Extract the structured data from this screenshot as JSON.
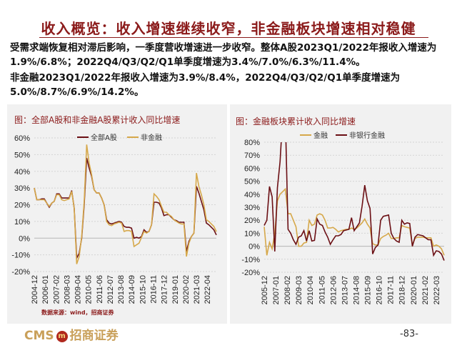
{
  "header": {
    "title": "收入概览：收入增速继续收窄，非金融板块增速相对稳健",
    "paragraph1": "受需求端恢复相对滞后影响，一季度营收增速进一步收窄。整体A股2023Q1/2022年报收入增速为1.9%/6.8%；2022Q4/Q3/Q2/Q1单季度增速为3.4%/7.0%/6.3%/11.4%。",
    "paragraph2": "非金融2023Q1/2022年报收入增速为3.9%/8.4%，2022Q4/Q3/Q2/Q1单季度增速为5.0%/8.7%/6.9%/14.2%。"
  },
  "footer": {
    "logo_text": "CMS",
    "logo_cn": "招商证券",
    "page_number": "-83-"
  },
  "colors": {
    "title": "#8b1a1a",
    "dark_series": "#6b0f14",
    "gold_series": "#d6a84a",
    "panel_bg": "#f1f1f1"
  },
  "chart_data": [
    {
      "type": "line",
      "title": "图：全部A股和非金融A股累计收入同比增速",
      "source": "数据来源：wind，招商证券",
      "ylim": [
        -20,
        60
      ],
      "yticks": [
        "60%",
        "50%",
        "40%",
        "30%",
        "20%",
        "10%",
        "0%",
        "-10%",
        "-20%"
      ],
      "ytick_values": [
        60,
        50,
        40,
        30,
        20,
        10,
        0,
        -10,
        -20
      ],
      "xtick_labels": [
        "2004-12",
        "2006-01",
        "2007-02",
        "2008-03",
        "2009-04",
        "2010-05",
        "2011-06",
        "2012-07",
        "2013-08",
        "2014-09",
        "2015-10",
        "2016-11",
        "2017-12",
        "2019-01",
        "2020-02",
        "2021-03",
        "2022-04"
      ],
      "grid": "horizontal dotted",
      "legend": "top",
      "x": [
        "2004-12",
        "2005-03",
        "2005-06",
        "2005-09",
        "2005-12",
        "2006-03",
        "2006-06",
        "2006-09",
        "2006-12",
        "2007-03",
        "2007-06",
        "2007-09",
        "2007-12",
        "2008-03",
        "2008-06",
        "2008-09",
        "2008-12",
        "2009-03",
        "2009-06",
        "2009-09",
        "2009-12",
        "2010-03",
        "2010-06",
        "2010-09",
        "2010-12",
        "2011-03",
        "2011-06",
        "2011-09",
        "2011-12",
        "2012-03",
        "2012-06",
        "2012-09",
        "2012-12",
        "2013-03",
        "2013-06",
        "2013-09",
        "2013-12",
        "2014-03",
        "2014-06",
        "2014-09",
        "2014-12",
        "2015-03",
        "2015-06",
        "2015-09",
        "2015-12",
        "2016-03",
        "2016-06",
        "2016-09",
        "2016-12",
        "2017-03",
        "2017-06",
        "2017-09",
        "2017-12",
        "2018-03",
        "2018-06",
        "2018-09",
        "2018-12",
        "2019-03",
        "2019-06",
        "2019-09",
        "2019-12",
        "2020-03",
        "2020-06",
        "2020-09",
        "2020-12",
        "2021-03",
        "2021-06",
        "2021-09",
        "2021-12",
        "2022-03",
        "2022-06",
        "2022-09",
        "2022-12",
        "2023-03"
      ],
      "series": [
        {
          "name": "全部A股",
          "color": "#6b0f14",
          "values": [
            30,
            23,
            23,
            23.5,
            23.5,
            21,
            18.5,
            21,
            22,
            26.5,
            26.5,
            24,
            24,
            24,
            24,
            28.5,
            18,
            -12,
            -9,
            0,
            20,
            48,
            42,
            37,
            29,
            27,
            27,
            24,
            20,
            11,
            9,
            8.5,
            9,
            9.5,
            10,
            9.5,
            7,
            6.5,
            6.5,
            6,
            0,
            0.5,
            0,
            1,
            5,
            3.5,
            4,
            8,
            21.5,
            21.5,
            21,
            18,
            13.5,
            14,
            14,
            12.5,
            11,
            10.5,
            9.5,
            9.5,
            9.5,
            -8,
            -2,
            1,
            3,
            31,
            27,
            22,
            17,
            9,
            8,
            6.5,
            5,
            1.9
          ]
        },
        {
          "name": "非金融",
          "color": "#d6a84a",
          "values": [
            30,
            23,
            23,
            23,
            23,
            21,
            19,
            21,
            22,
            26,
            26,
            23,
            22.5,
            23,
            23.5,
            28,
            18,
            -15.5,
            -11,
            1,
            22,
            56,
            45,
            38,
            29,
            27,
            27,
            24,
            20,
            10,
            8,
            7.5,
            8.5,
            9,
            9.5,
            9,
            4,
            4.5,
            4.5,
            4,
            -5,
            -4,
            -3,
            0.5,
            4,
            3,
            4,
            8,
            26.5,
            25,
            23,
            19,
            15.5,
            15.5,
            14,
            13,
            11,
            10,
            9,
            8.5,
            8.5,
            -11,
            -3,
            1,
            3,
            39,
            31,
            26,
            20,
            11,
            10,
            8.5,
            7,
            3.9
          ]
        }
      ]
    },
    {
      "type": "line",
      "title": "图：金融板块累计收入同比增速",
      "ylim": [
        -20,
        80
      ],
      "yticks": [
        "80%",
        "70%",
        "60%",
        "50%",
        "40%",
        "30%",
        "20%",
        "10%",
        "0%",
        "-10%",
        "-20%"
      ],
      "ytick_values": [
        80,
        70,
        60,
        50,
        40,
        30,
        20,
        10,
        0,
        -10,
        -20
      ],
      "xtick_labels": [
        "2005-12",
        "2007-01",
        "2008-02",
        "2009-03",
        "2010-04",
        "2011-05",
        "2012-06",
        "2013-07",
        "2014-08",
        "2015-09",
        "2016-10",
        "2017-11",
        "2018-12",
        "2020-01",
        "2021-02",
        "2022-03"
      ],
      "grid": "horizontal dotted",
      "legend": "top",
      "x": [
        "2005-12",
        "2006-03",
        "2006-06",
        "2006-09",
        "2006-12",
        "2007-03",
        "2007-06",
        "2007-09",
        "2007-12",
        "2008-03",
        "2008-06",
        "2008-09",
        "2008-12",
        "2009-03",
        "2009-06",
        "2009-09",
        "2009-12",
        "2010-03",
        "2010-06",
        "2010-09",
        "2010-12",
        "2011-03",
        "2011-06",
        "2011-09",
        "2011-12",
        "2012-03",
        "2012-06",
        "2012-09",
        "2012-12",
        "2013-03",
        "2013-06",
        "2013-09",
        "2013-12",
        "2014-03",
        "2014-06",
        "2014-09",
        "2014-12",
        "2015-03",
        "2015-06",
        "2015-09",
        "2015-12",
        "2016-03",
        "2016-06",
        "2016-09",
        "2016-12",
        "2017-03",
        "2017-06",
        "2017-09",
        "2017-12",
        "2018-03",
        "2018-06",
        "2018-09",
        "2018-12",
        "2019-03",
        "2019-06",
        "2019-09",
        "2019-12",
        "2020-03",
        "2020-06",
        "2020-09",
        "2020-12",
        "2021-03",
        "2021-06",
        "2021-09",
        "2021-12",
        "2022-03",
        "2022-06",
        "2022-09",
        "2022-12"
      ],
      "series": [
        {
          "name": "金融",
          "color": "#d6a84a",
          "values": [
            15,
            -7,
            3,
            -2,
            10,
            35,
            40,
            42,
            44,
            25,
            25,
            20,
            15,
            0,
            0,
            2.5,
            3,
            20,
            16,
            17,
            24,
            25,
            24,
            20,
            14,
            14,
            14.5,
            13,
            11,
            12,
            12.5,
            13,
            13,
            14,
            13,
            14,
            16,
            18,
            21,
            17,
            14,
            2,
            1,
            1,
            6,
            7.5,
            8.5,
            10,
            6,
            6,
            6.5,
            6.5,
            16,
            15,
            14.5,
            14,
            1,
            6,
            7,
            7,
            7,
            6.5,
            6.5,
            6.5,
            0,
            1,
            0,
            -2,
            -7
          ]
        },
        {
          "name": "非银行金融",
          "color": "#6b0f14",
          "values": [
            16,
            20,
            46,
            38,
            -4,
            45,
            65,
            100,
            100,
            13,
            10,
            5,
            1.5,
            7,
            8,
            12,
            4,
            12,
            4,
            4.5,
            21,
            17,
            16,
            11,
            7,
            1.5,
            5,
            8,
            8,
            9,
            12,
            12.5,
            13,
            22,
            12,
            15,
            18,
            31,
            47,
            35,
            29,
            -6,
            -1,
            1,
            20,
            23,
            23.5,
            24,
            10,
            6,
            4,
            3,
            20,
            17,
            18,
            17.5,
            0,
            7,
            9,
            8.5,
            8,
            6.5,
            5,
            5,
            -7,
            -3.5,
            -4,
            -6,
            -11
          ]
        }
      ]
    }
  ]
}
